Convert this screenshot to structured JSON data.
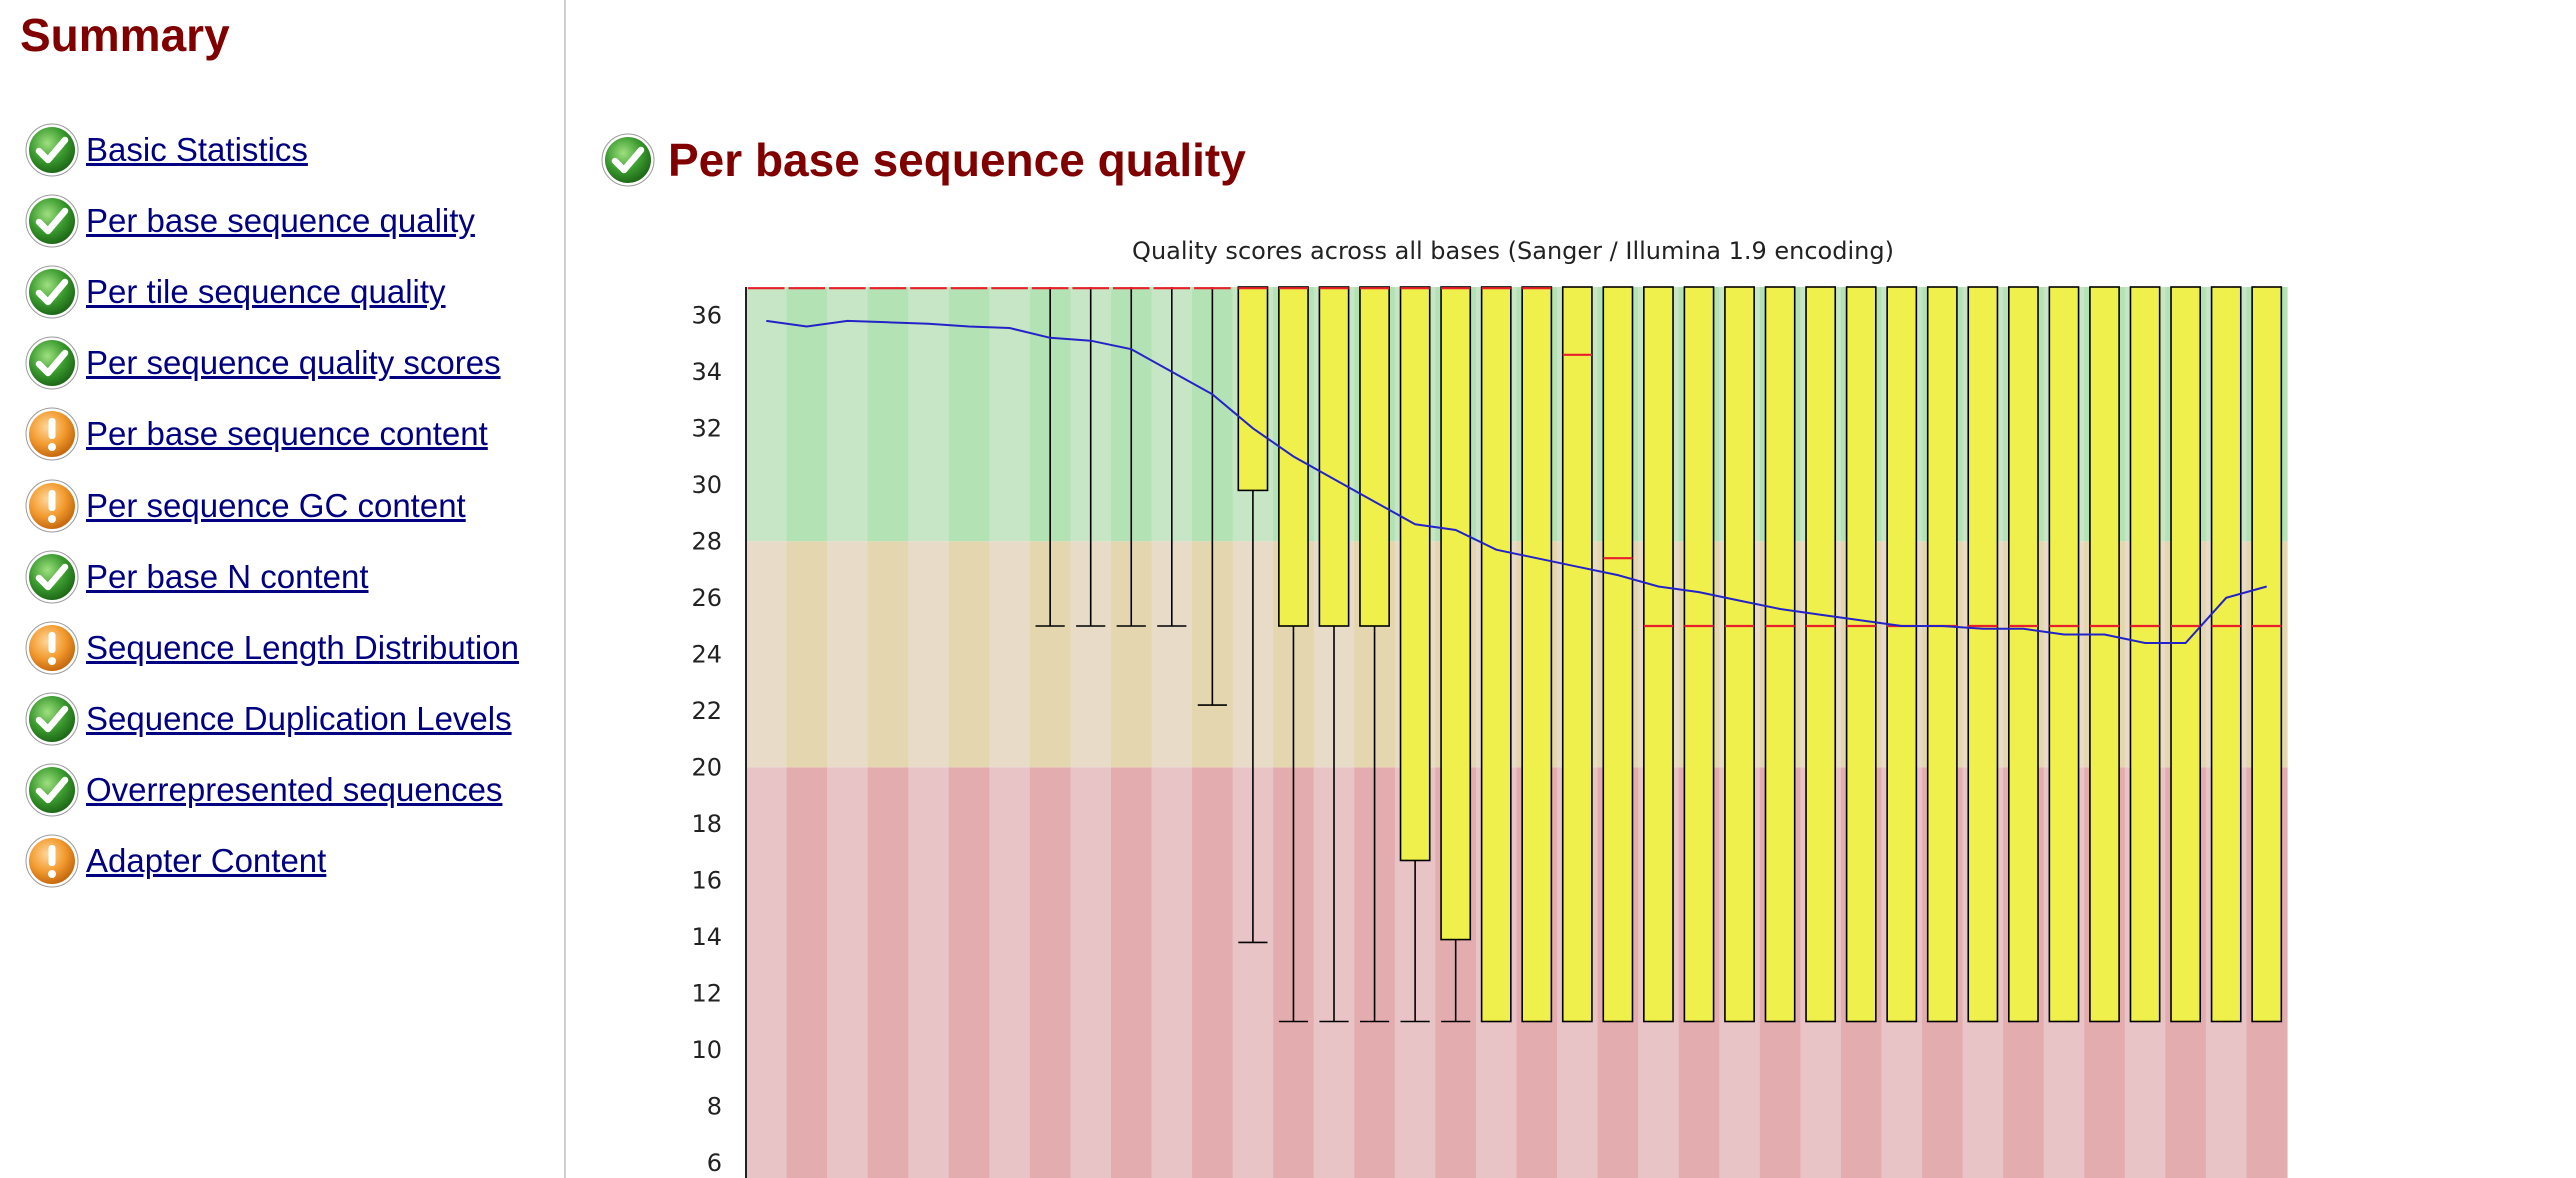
{
  "sidebar": {
    "title": "Summary",
    "modules": [
      {
        "label": "Basic Statistics",
        "status": "pass",
        "icon": "check-icon"
      },
      {
        "label": "Per base sequence quality",
        "status": "pass",
        "icon": "check-icon"
      },
      {
        "label": "Per tile sequence quality",
        "status": "pass",
        "icon": "check-icon"
      },
      {
        "label": "Per sequence quality scores",
        "status": "pass",
        "icon": "check-icon"
      },
      {
        "label": "Per base sequence content",
        "status": "warn",
        "icon": "warning-icon"
      },
      {
        "label": "Per sequence GC content",
        "status": "warn",
        "icon": "warning-icon"
      },
      {
        "label": "Per base N content",
        "status": "pass",
        "icon": "check-icon"
      },
      {
        "label": "Sequence Length Distribution",
        "status": "warn",
        "icon": "warning-icon"
      },
      {
        "label": "Sequence Duplication Levels",
        "status": "pass",
        "icon": "check-icon"
      },
      {
        "label": "Overrepresented sequences",
        "status": "pass",
        "icon": "check-icon"
      },
      {
        "label": "Adapter Content",
        "status": "warn",
        "icon": "warning-icon"
      }
    ]
  },
  "module": {
    "title": "Per base sequence quality",
    "status": "pass",
    "icon": "check-icon"
  },
  "colors": {
    "heading": "#800000",
    "link": "#000080",
    "good_zone": [
      "#c7e6c6",
      "#b3e2b4"
    ],
    "ok_zone": [
      "#e8dcc8",
      "#e4d6ae"
    ],
    "bad_zone": [
      "#e8c4c6",
      "#e3adb0"
    ],
    "box_fill": "#f0f04c",
    "median": "#e8202b",
    "mean_line": "#2323c8"
  },
  "chart_data": {
    "type": "box",
    "title": "Quality scores across all bases (Sanger / Illumina 1.9 encoding)",
    "xlabel": "",
    "ylabel": "",
    "ylim": [
      5,
      37
    ],
    "yticks": [
      6,
      8,
      10,
      12,
      14,
      16,
      18,
      20,
      22,
      24,
      26,
      28,
      30,
      32,
      34,
      36
    ],
    "zones": {
      "bad": [
        0,
        20
      ],
      "ok": [
        20,
        28
      ],
      "good": [
        28,
        37
      ]
    },
    "positions": 38,
    "boxes": [
      {
        "low": 37,
        "q1": 37,
        "median": 37,
        "q3": 37,
        "high": 37
      },
      {
        "low": 37,
        "q1": 37,
        "median": 37,
        "q3": 37,
        "high": 37
      },
      {
        "low": 37,
        "q1": 37,
        "median": 37,
        "q3": 37,
        "high": 37
      },
      {
        "low": 37,
        "q1": 37,
        "median": 37,
        "q3": 37,
        "high": 37
      },
      {
        "low": 37,
        "q1": 37,
        "median": 37,
        "q3": 37,
        "high": 37
      },
      {
        "low": 37,
        "q1": 37,
        "median": 37,
        "q3": 37,
        "high": 37
      },
      {
        "low": 37,
        "q1": 37,
        "median": 37,
        "q3": 37,
        "high": 37
      },
      {
        "low": 25,
        "q1": 37,
        "median": 37,
        "q3": 37,
        "high": 37
      },
      {
        "low": 25,
        "q1": 37,
        "median": 37,
        "q3": 37,
        "high": 37
      },
      {
        "low": 25,
        "q1": 37,
        "median": 37,
        "q3": 37,
        "high": 37
      },
      {
        "low": 25,
        "q1": 37,
        "median": 37,
        "q3": 37,
        "high": 37
      },
      {
        "low": 22.2,
        "q1": 37,
        "median": 37,
        "q3": 37,
        "high": 37
      },
      {
        "low": 13.8,
        "q1": 29.8,
        "median": 37,
        "q3": 37,
        "high": 37
      },
      {
        "low": 11,
        "q1": 25,
        "median": 37,
        "q3": 37,
        "high": 37
      },
      {
        "low": 11,
        "q1": 25,
        "median": 37,
        "q3": 37,
        "high": 37
      },
      {
        "low": 11,
        "q1": 25,
        "median": 37,
        "q3": 37,
        "high": 37
      },
      {
        "low": 11,
        "q1": 16.7,
        "median": 37,
        "q3": 37,
        "high": 37
      },
      {
        "low": 11,
        "q1": 13.9,
        "median": 37,
        "q3": 37,
        "high": 37
      },
      {
        "low": 11,
        "q1": 11,
        "median": 37,
        "q3": 37,
        "high": 37
      },
      {
        "low": 11,
        "q1": 11,
        "median": 37,
        "q3": 37,
        "high": 37
      },
      {
        "low": 11,
        "q1": 11,
        "median": 34.6,
        "q3": 37,
        "high": 37
      },
      {
        "low": 11,
        "q1": 11,
        "median": 27.4,
        "q3": 37,
        "high": 37
      },
      {
        "low": 11,
        "q1": 11,
        "median": 25,
        "q3": 37,
        "high": 37
      },
      {
        "low": 11,
        "q1": 11,
        "median": 25,
        "q3": 37,
        "high": 37
      },
      {
        "low": 11,
        "q1": 11,
        "median": 25,
        "q3": 37,
        "high": 37
      },
      {
        "low": 11,
        "q1": 11,
        "median": 25,
        "q3": 37,
        "high": 37
      },
      {
        "low": 11,
        "q1": 11,
        "median": 25,
        "q3": 37,
        "high": 37
      },
      {
        "low": 11,
        "q1": 11,
        "median": 25,
        "q3": 37,
        "high": 37
      },
      {
        "low": 11,
        "q1": 11,
        "median": 25,
        "q3": 37,
        "high": 37
      },
      {
        "low": 11,
        "q1": 11,
        "median": 25,
        "q3": 37,
        "high": 37
      },
      {
        "low": 11,
        "q1": 11,
        "median": 25,
        "q3": 37,
        "high": 37
      },
      {
        "low": 11,
        "q1": 11,
        "median": 25,
        "q3": 37,
        "high": 37
      },
      {
        "low": 11,
        "q1": 11,
        "median": 25,
        "q3": 37,
        "high": 37
      },
      {
        "low": 11,
        "q1": 11,
        "median": 25,
        "q3": 37,
        "high": 37
      },
      {
        "low": 11,
        "q1": 11,
        "median": 25,
        "q3": 37,
        "high": 37
      },
      {
        "low": 11,
        "q1": 11,
        "median": 25,
        "q3": 37,
        "high": 37
      },
      {
        "low": 11,
        "q1": 11,
        "median": 25,
        "q3": 37,
        "high": 37
      },
      {
        "low": 11,
        "q1": 11,
        "median": 25,
        "q3": 37,
        "high": 37
      }
    ],
    "mean": [
      35.8,
      35.6,
      35.8,
      35.75,
      35.7,
      35.6,
      35.55,
      35.2,
      35.1,
      34.8,
      34.0,
      33.2,
      32.0,
      31.0,
      30.2,
      29.4,
      28.6,
      28.4,
      27.7,
      27.4,
      27.1,
      26.8,
      26.4,
      26.2,
      25.9,
      25.6,
      25.4,
      25.2,
      25.0,
      25.0,
      24.9,
      24.9,
      24.7,
      24.7,
      24.4,
      24.4,
      26.0,
      26.4
    ]
  }
}
